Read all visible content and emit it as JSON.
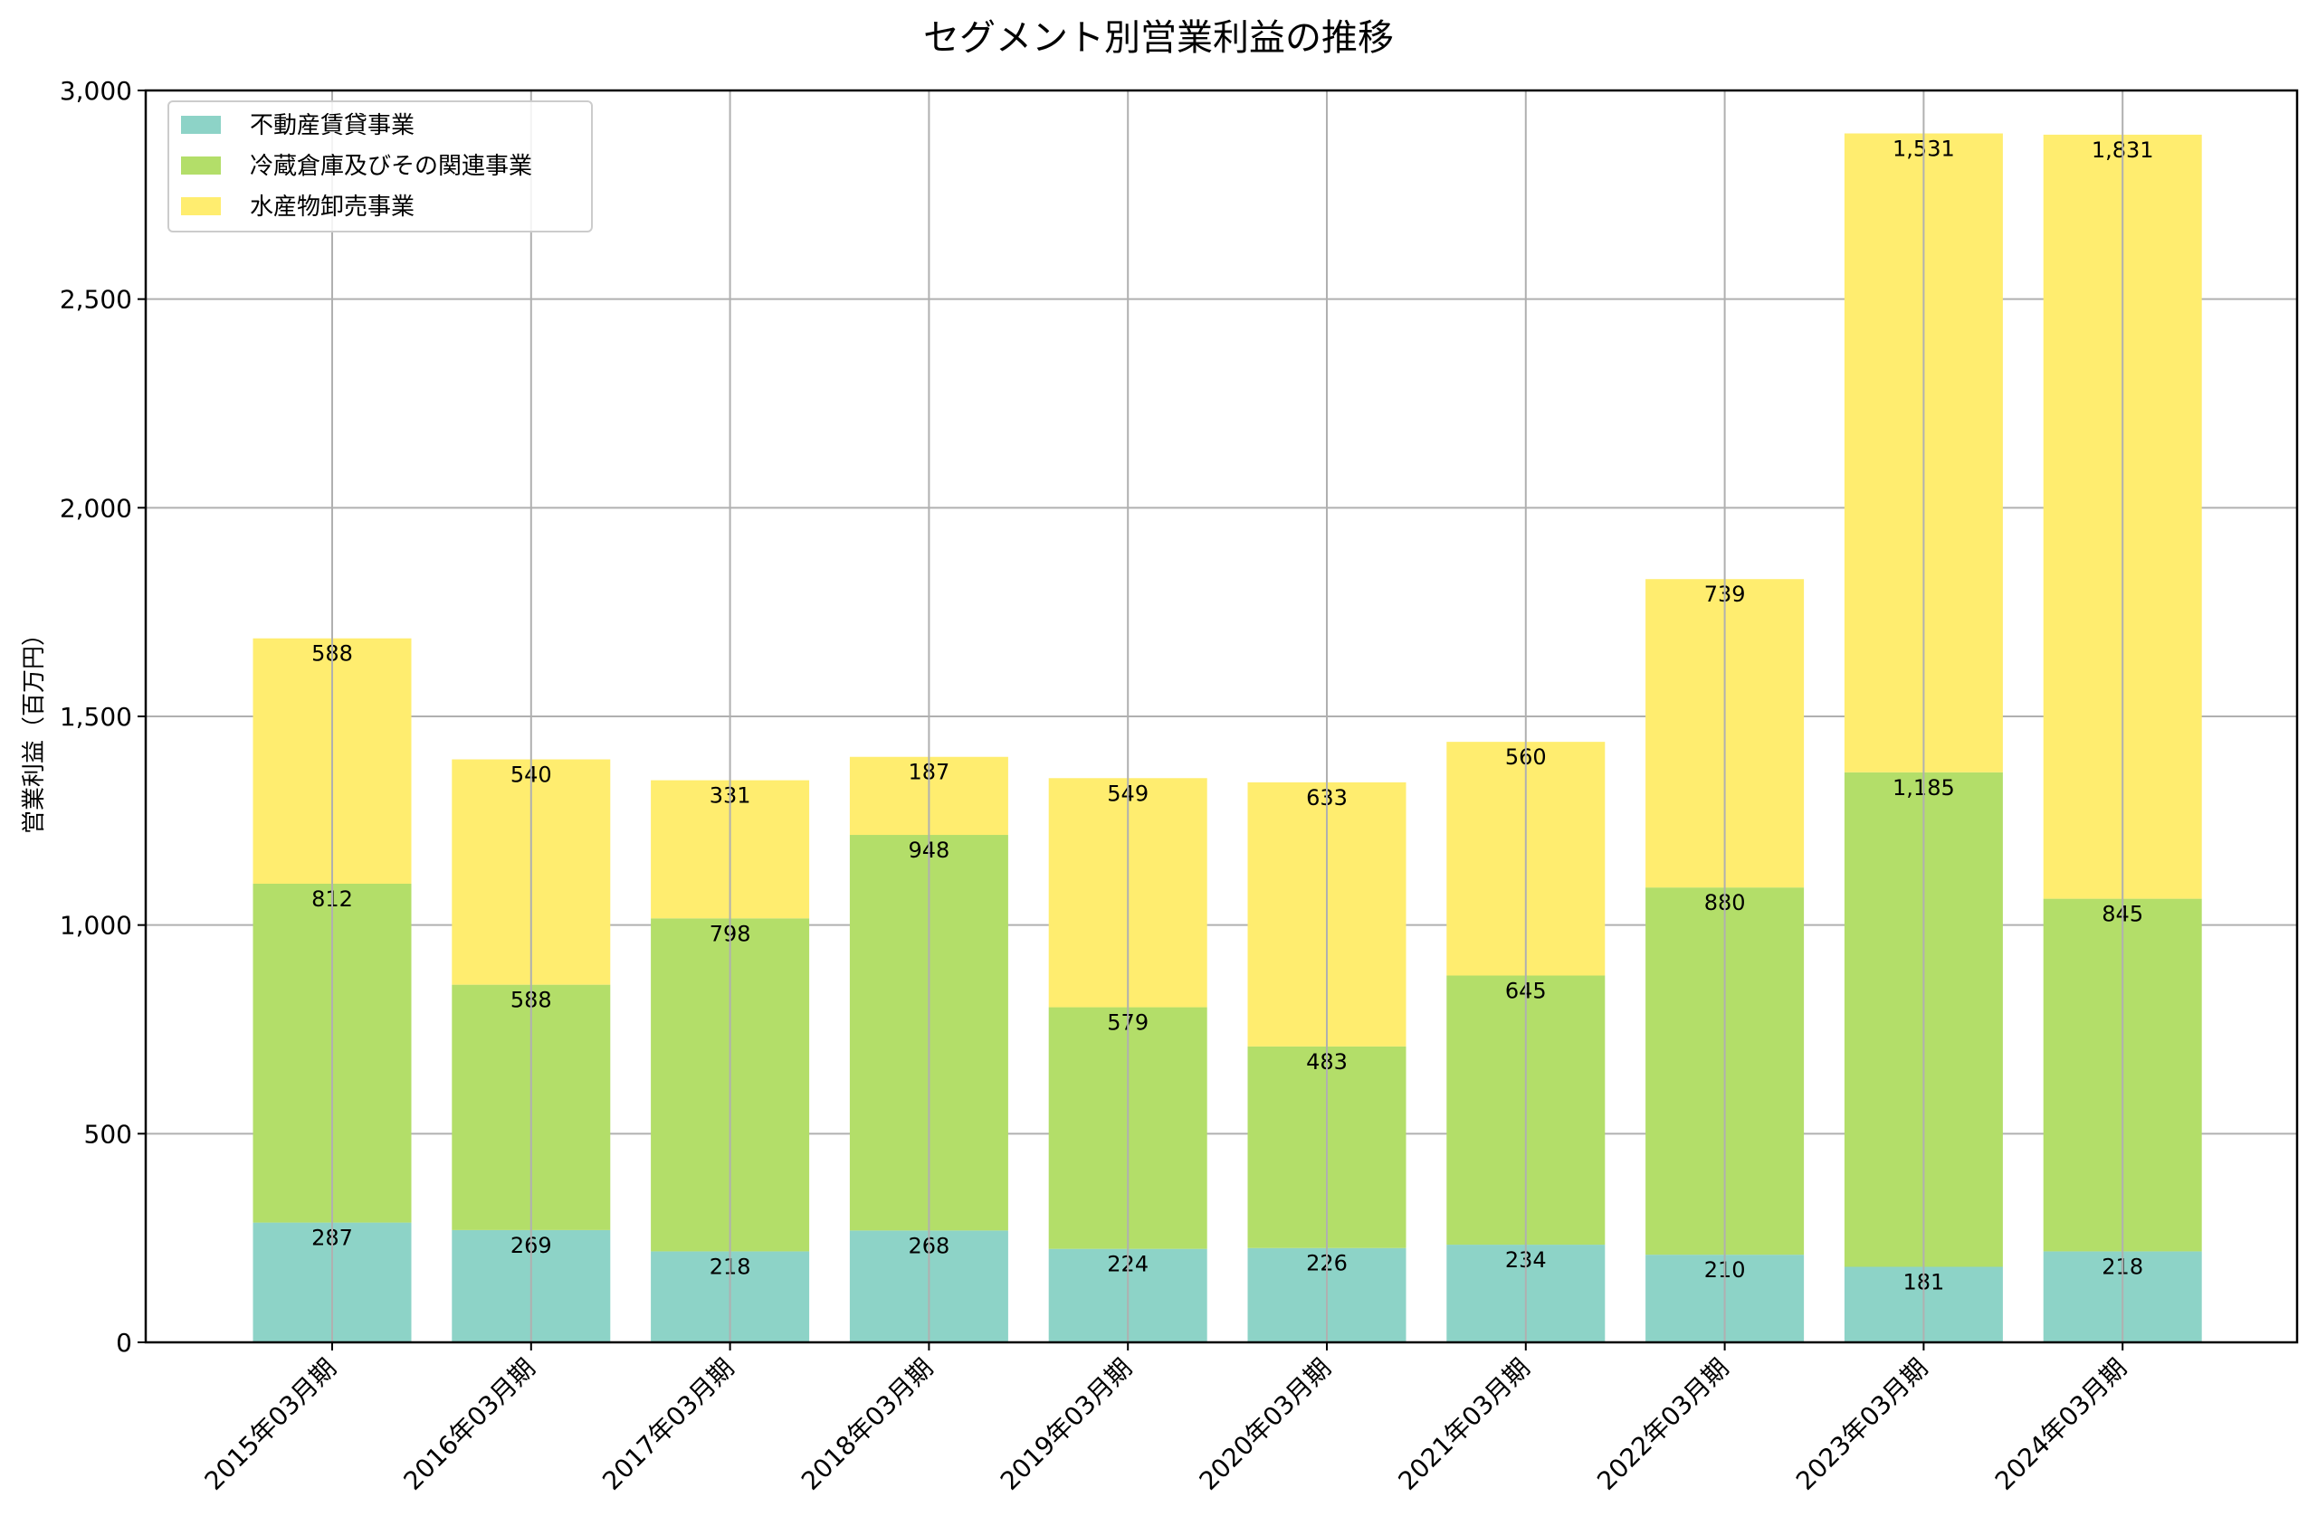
{
  "chart_data": {
    "type": "bar",
    "stacked": true,
    "title": "セグメント別営業利益の推移",
    "xlabel": "",
    "ylabel": "営業利益（百万円）",
    "ylim": [
      0,
      3000
    ],
    "yticks": [
      0,
      500,
      1000,
      1500,
      2000,
      2500,
      3000
    ],
    "ytick_labels": [
      "0",
      "500",
      "1,000",
      "1,500",
      "2,000",
      "2,500",
      "3,000"
    ],
    "grid": true,
    "legend_position": "top-left",
    "categories": [
      "2015年03月期",
      "2016年03月期",
      "2017年03月期",
      "2018年03月期",
      "2019年03月期",
      "2020年03月期",
      "2021年03月期",
      "2022年03月期",
      "2023年03月期",
      "2024年03月期"
    ],
    "series": [
      {
        "name": "不動産賃貸事業",
        "color": "#8dd3c7",
        "values": [
          287,
          269,
          218,
          268,
          224,
          226,
          234,
          210,
          181,
          218
        ],
        "labels": [
          "287",
          "269",
          "218",
          "268",
          "224",
          "226",
          "234",
          "210",
          "181",
          "218"
        ]
      },
      {
        "name": "冷蔵倉庫及びその関連事業",
        "color": "#b3de69",
        "values": [
          812,
          588,
          798,
          948,
          579,
          483,
          645,
          880,
          1185,
          845
        ],
        "labels": [
          "812",
          "588",
          "798",
          "948",
          "579",
          "483",
          "645",
          "880",
          "1,185",
          "845"
        ]
      },
      {
        "name": "水産物卸売事業",
        "color": "#ffed6f",
        "values": [
          588,
          540,
          331,
          187,
          549,
          633,
          560,
          739,
          1531,
          1831
        ],
        "labels": [
          "588",
          "540",
          "331",
          "187",
          "549",
          "633",
          "560",
          "739",
          "1,531",
          "1,831"
        ]
      }
    ]
  }
}
